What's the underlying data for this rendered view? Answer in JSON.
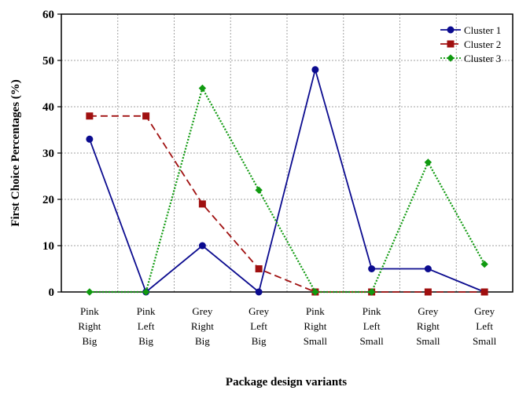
{
  "chart_data": {
    "type": "line",
    "title": "",
    "xlabel": "Package design variants",
    "ylabel": "First Choice Percentages (%)",
    "ylim": [
      0,
      60
    ],
    "yticks": [
      0,
      10,
      20,
      30,
      40,
      50,
      60
    ],
    "grid": true,
    "legend_position": "top-right",
    "categories": [
      [
        "Pink",
        "Right",
        "Big"
      ],
      [
        "Pink",
        "Left",
        "Big"
      ],
      [
        "Grey",
        "Right",
        "Big"
      ],
      [
        "Grey",
        "Left",
        "Big"
      ],
      [
        "Pink",
        "Right",
        "Small"
      ],
      [
        "Pink",
        "Left",
        "Small"
      ],
      [
        "Grey",
        "Right",
        "Small"
      ],
      [
        "Grey",
        "Left",
        "Small"
      ]
    ],
    "series": [
      {
        "name": "Cluster 1",
        "values": [
          33,
          0,
          10,
          0,
          48,
          5,
          5,
          0
        ],
        "color": "#0b0b8f",
        "marker": "circle",
        "line": "solid"
      },
      {
        "name": "Cluster 2",
        "values": [
          38,
          38,
          19,
          5,
          0,
          0,
          0,
          0
        ],
        "color": "#a01010",
        "marker": "square",
        "line": "dashed"
      },
      {
        "name": "Cluster 3",
        "values": [
          0,
          0,
          44,
          22,
          0,
          0,
          28,
          6
        ],
        "color": "#109a10",
        "marker": "diamond",
        "line": "dotted"
      }
    ]
  }
}
